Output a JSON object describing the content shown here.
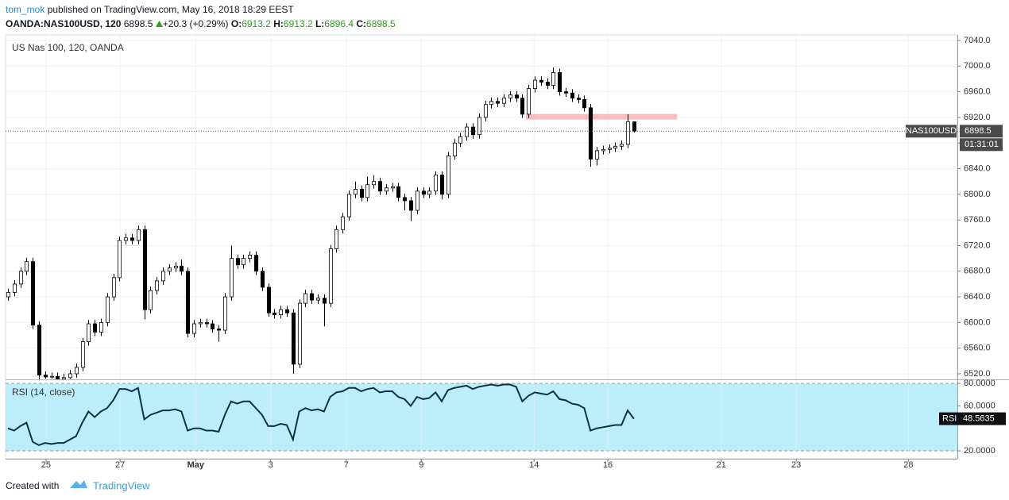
{
  "header": {
    "author": "tom_mok",
    "published": "published on TradingView.com, May 16, 2018 18:29 EEST",
    "symbol": "OANDA:NAS100USD, 120",
    "change": "+20.3 (+0.29%)",
    "o_label": "O:",
    "h_label": "H:",
    "l_label": "L:",
    "c_label": "C:"
  },
  "chart_data": {
    "type": "candlestick",
    "title": "US Nas 100, 120, OANDA",
    "symbol": "NAS100USD",
    "countdown": "01:31:01",
    "open": [
      6640,
      6647,
      6660,
      6680,
      6695,
      6596,
      6518,
      6515,
      6516,
      6512,
      6514,
      6520,
      6530,
      6570,
      6598,
      6585,
      6600,
      6640,
      6670,
      6728,
      6732,
      6728,
      6745,
      6620,
      6650,
      6665,
      6680,
      6685,
      6688,
      6680,
      6583,
      6598,
      6600,
      6598,
      6590,
      6588,
      6640,
      6700,
      6690,
      6700,
      6705,
      6680,
      6655,
      6615,
      6612,
      6620,
      6615,
      6535,
      6630,
      6645,
      6635,
      6638,
      6630,
      6715,
      6745,
      6765,
      6800,
      6808,
      6795,
      6815,
      6820,
      6805,
      6810,
      6812,
      6795,
      6790,
      6775,
      6805,
      6800,
      6805,
      6830,
      6800,
      6860,
      6880,
      6890,
      6905,
      6893,
      6920,
      6940,
      6945,
      6942,
      6950,
      6955,
      6950,
      6925,
      6965,
      6978,
      6975,
      6970,
      6990,
      6960,
      6958,
      6950,
      6948,
      6935,
      6855,
      6868,
      6870,
      6872,
      6875,
      6878,
      6913.2
    ],
    "high": [
      6653,
      6666,
      6686,
      6701,
      6701,
      6602,
      6524,
      6522,
      6522,
      6520,
      6526,
      6536,
      6576,
      6604,
      6604,
      6606,
      6646,
      6676,
      6734,
      6738,
      6738,
      6751,
      6751,
      6656,
      6671,
      6686,
      6691,
      6694,
      6698,
      6686,
      6604,
      6606,
      6606,
      6604,
      6596,
      6646,
      6720,
      6706,
      6706,
      6711,
      6711,
      6686,
      6661,
      6621,
      6626,
      6626,
      6621,
      6636,
      6651,
      6651,
      6644,
      6644,
      6721,
      6751,
      6771,
      6806,
      6820,
      6814,
      6828,
      6830,
      6826,
      6816,
      6818,
      6818,
      6801,
      6796,
      6811,
      6811,
      6811,
      6836,
      6836,
      6866,
      6886,
      6896,
      6911,
      6911,
      6926,
      6946,
      6951,
      6951,
      6956,
      6961,
      6961,
      6956,
      6971,
      6984,
      6984,
      6981,
      6998,
      6996,
      6966,
      6964,
      6956,
      6954,
      6941,
      6874,
      6876,
      6878,
      6881,
      6884,
      6925,
      6913.2
    ],
    "low": [
      6634,
      6641,
      6654,
      6674,
      6590,
      6511.5,
      6512,
      6512,
      6512,
      6512,
      6512,
      6514,
      6524,
      6564,
      6579,
      6579,
      6594,
      6634,
      6664,
      6722,
      6722,
      6722,
      6605,
      6614,
      6644,
      6659,
      6674,
      6679,
      6674,
      6577,
      6577,
      6592,
      6592,
      6584,
      6570,
      6582,
      6634,
      6684,
      6684,
      6694,
      6674,
      6649,
      6609,
      6606,
      6606,
      6609,
      6520,
      6529,
      6624,
      6629,
      6629,
      6594,
      6624,
      6709,
      6739,
      6759,
      6794,
      6789,
      6789,
      6809,
      6799,
      6799,
      6804,
      6789,
      6775,
      6758,
      6769,
      6794,
      6794,
      6799,
      6792,
      6794,
      6854,
      6874,
      6884,
      6887,
      6887,
      6914,
      6934,
      6936,
      6936,
      6944,
      6944,
      6919,
      6919,
      6959,
      6969,
      6964,
      6964,
      6954,
      6952,
      6944,
      6942,
      6929,
      6843,
      6845,
      6862,
      6864,
      6866,
      6869,
      6872,
      6896.4
    ],
    "close": [
      6647,
      6660,
      6680,
      6695,
      6596,
      6518,
      6515,
      6516,
      6512,
      6514,
      6520,
      6530,
      6570,
      6598,
      6585,
      6600,
      6640,
      6670,
      6728,
      6732,
      6728,
      6745,
      6620,
      6650,
      6665,
      6680,
      6685,
      6688,
      6680,
      6583,
      6598,
      6600,
      6598,
      6590,
      6588,
      6640,
      6700,
      6690,
      6700,
      6705,
      6680,
      6655,
      6615,
      6612,
      6620,
      6615,
      6535,
      6630,
      6645,
      6635,
      6638,
      6630,
      6715,
      6745,
      6765,
      6800,
      6808,
      6795,
      6815,
      6820,
      6805,
      6810,
      6812,
      6795,
      6790,
      6775,
      6805,
      6800,
      6805,
      6830,
      6800,
      6860,
      6880,
      6890,
      6905,
      6893,
      6920,
      6940,
      6945,
      6942,
      6950,
      6955,
      6950,
      6925,
      6965,
      6978,
      6975,
      6970,
      6990,
      6960,
      6958,
      6950,
      6948,
      6935,
      6855,
      6868,
      6870,
      6872,
      6875,
      6878,
      6913,
      6898.5
    ],
    "ylim": [
      6511.3,
      7048.7
    ],
    "yticks": [
      {
        "value": 6520,
        "label": "6520.0"
      },
      {
        "value": 6560,
        "label": "6560.0"
      },
      {
        "value": 6600,
        "label": "6600.0"
      },
      {
        "value": 6640,
        "label": "6640.0"
      },
      {
        "value": 6680,
        "label": "6680.0"
      },
      {
        "value": 6720,
        "label": "6720.0"
      },
      {
        "value": 6760,
        "label": "6760.0"
      },
      {
        "value": 6800,
        "label": "6800.0"
      },
      {
        "value": 6840,
        "label": "6840.0"
      },
      {
        "value": 6880,
        "label": "6880.0"
      },
      {
        "value": 6920,
        "label": "6920.0"
      },
      {
        "value": 6960,
        "label": "6960.0"
      },
      {
        "value": 7000,
        "label": "7000.0"
      },
      {
        "value": 7040,
        "label": "7040.0"
      }
    ],
    "xlim": [
      -0.38,
      153.2
    ],
    "xticks": [
      {
        "value": 6.15,
        "label": "25"
      },
      {
        "value": 18.1,
        "label": "27"
      },
      {
        "value": 30.3,
        "label": "May"
      },
      {
        "value": 42.4,
        "label": "3"
      },
      {
        "value": 54.6,
        "label": "7"
      },
      {
        "value": 66.7,
        "label": "9"
      },
      {
        "value": 84.9,
        "label": "14"
      },
      {
        "value": 96.8,
        "label": "16"
      },
      {
        "value": 115.1,
        "label": "21"
      },
      {
        "value": 127.2,
        "label": "23"
      },
      {
        "value": 145.3,
        "label": "28"
      }
    ],
    "grid": true,
    "up_color": "#ffffff",
    "down_color": "#000000",
    "zone": {
      "value": 6921,
      "x": [
        83.6,
        108
      ],
      "color": "#f4b3b3"
    },
    "rsi": {
      "title": "RSI (14, close)",
      "label": "RSI",
      "color": "#0b3144",
      "band_color": "#bcedfb",
      "values": [
        40,
        38,
        42,
        45,
        28,
        25,
        27,
        26,
        27,
        27,
        30,
        33,
        45,
        55,
        50,
        55,
        58,
        65,
        75,
        75,
        73,
        76,
        48,
        52,
        54,
        56,
        56,
        57,
        55,
        38,
        40,
        40,
        38,
        38,
        37,
        52,
        64,
        62,
        64,
        64,
        58,
        52,
        42,
        42,
        44,
        43,
        30,
        55,
        58,
        56,
        57,
        55,
        68,
        72,
        73,
        76,
        76,
        73,
        75,
        76,
        72,
        73,
        73,
        68,
        66,
        60,
        68,
        66,
        67,
        72,
        64,
        74,
        76,
        77,
        78,
        75,
        77,
        78,
        79,
        78,
        79,
        79,
        77,
        64,
        69,
        72,
        71,
        70,
        73,
        66,
        65,
        62,
        61,
        58,
        38,
        40,
        41,
        42,
        43,
        43,
        56,
        48.5635
      ],
      "ylim": [
        18.6,
        82.9
      ],
      "band": [
        20,
        80
      ],
      "yticks": [
        {
          "value": 20,
          "label": "20.0000"
        },
        {
          "value": 60,
          "label": "60.0000"
        },
        {
          "value": 80,
          "label": "80.0000"
        }
      ]
    }
  },
  "footer": {
    "created": "Created with",
    "brand": "TradingView"
  }
}
